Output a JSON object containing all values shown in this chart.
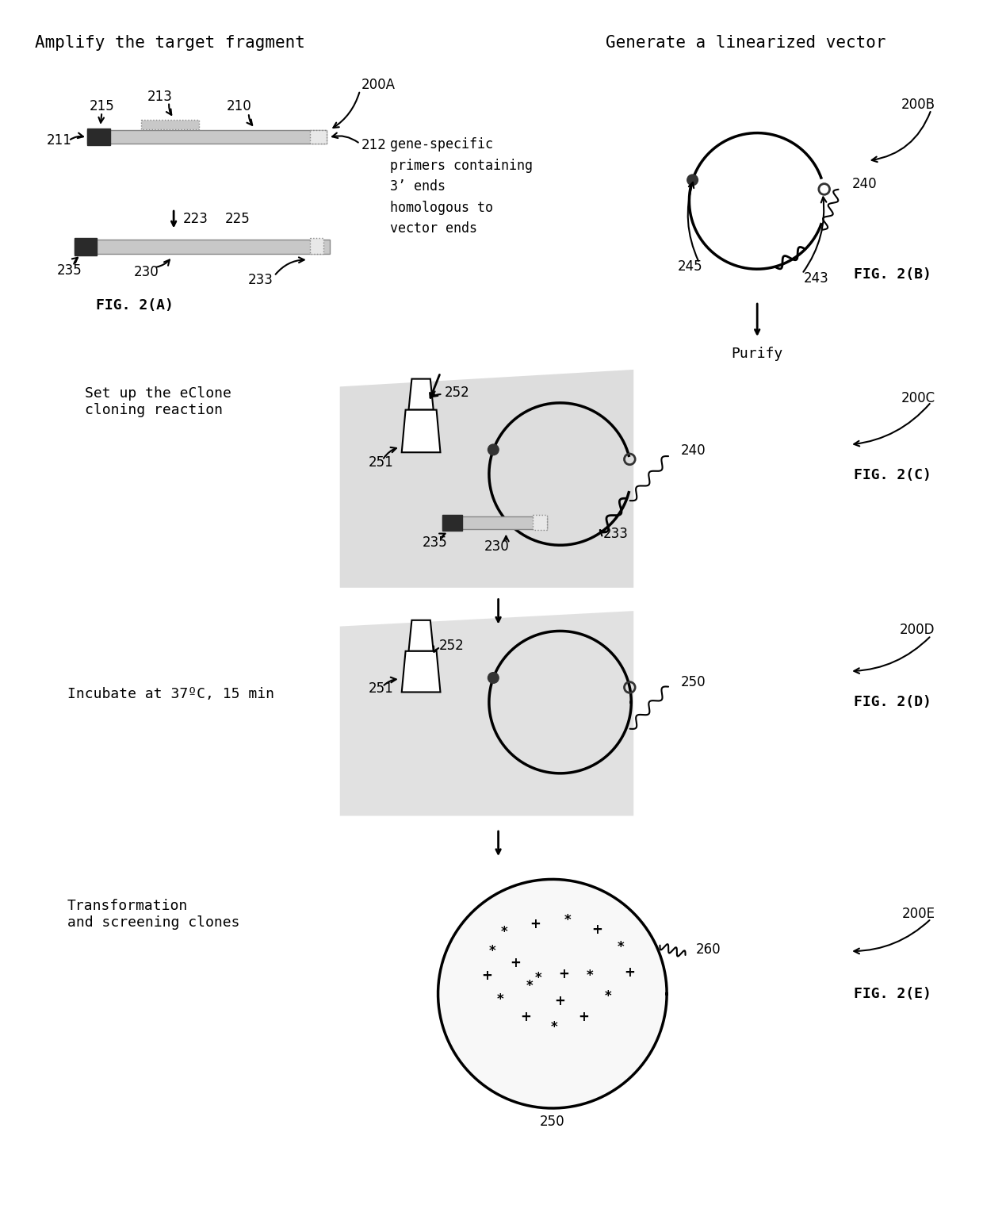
{
  "background_color": "#ffffff",
  "fig_width": 12.4,
  "fig_height": 15.48,
  "title_A": "Amplify the target fragment",
  "title_B": "Generate a linearized vector",
  "fig2A": "FIG. 2(A)",
  "fig2B": "FIG. 2(B)",
  "fig2C": "FIG. 2(C)",
  "fig2D": "FIG. 2(D)",
  "fig2E": "FIG. 2(E)",
  "annotation_text": "gene-specific\nprimers containing\n3’ ends\nhomologous to\nvector ends",
  "label_C_left": "Set up the eClone\ncloning reaction",
  "label_D_left": "Incubate at 37ºC, 15 min",
  "label_E_left": "Transformation\nand screening clones",
  "purify": "Purify",
  "font_title": 15,
  "font_label": 13,
  "font_num": 12
}
